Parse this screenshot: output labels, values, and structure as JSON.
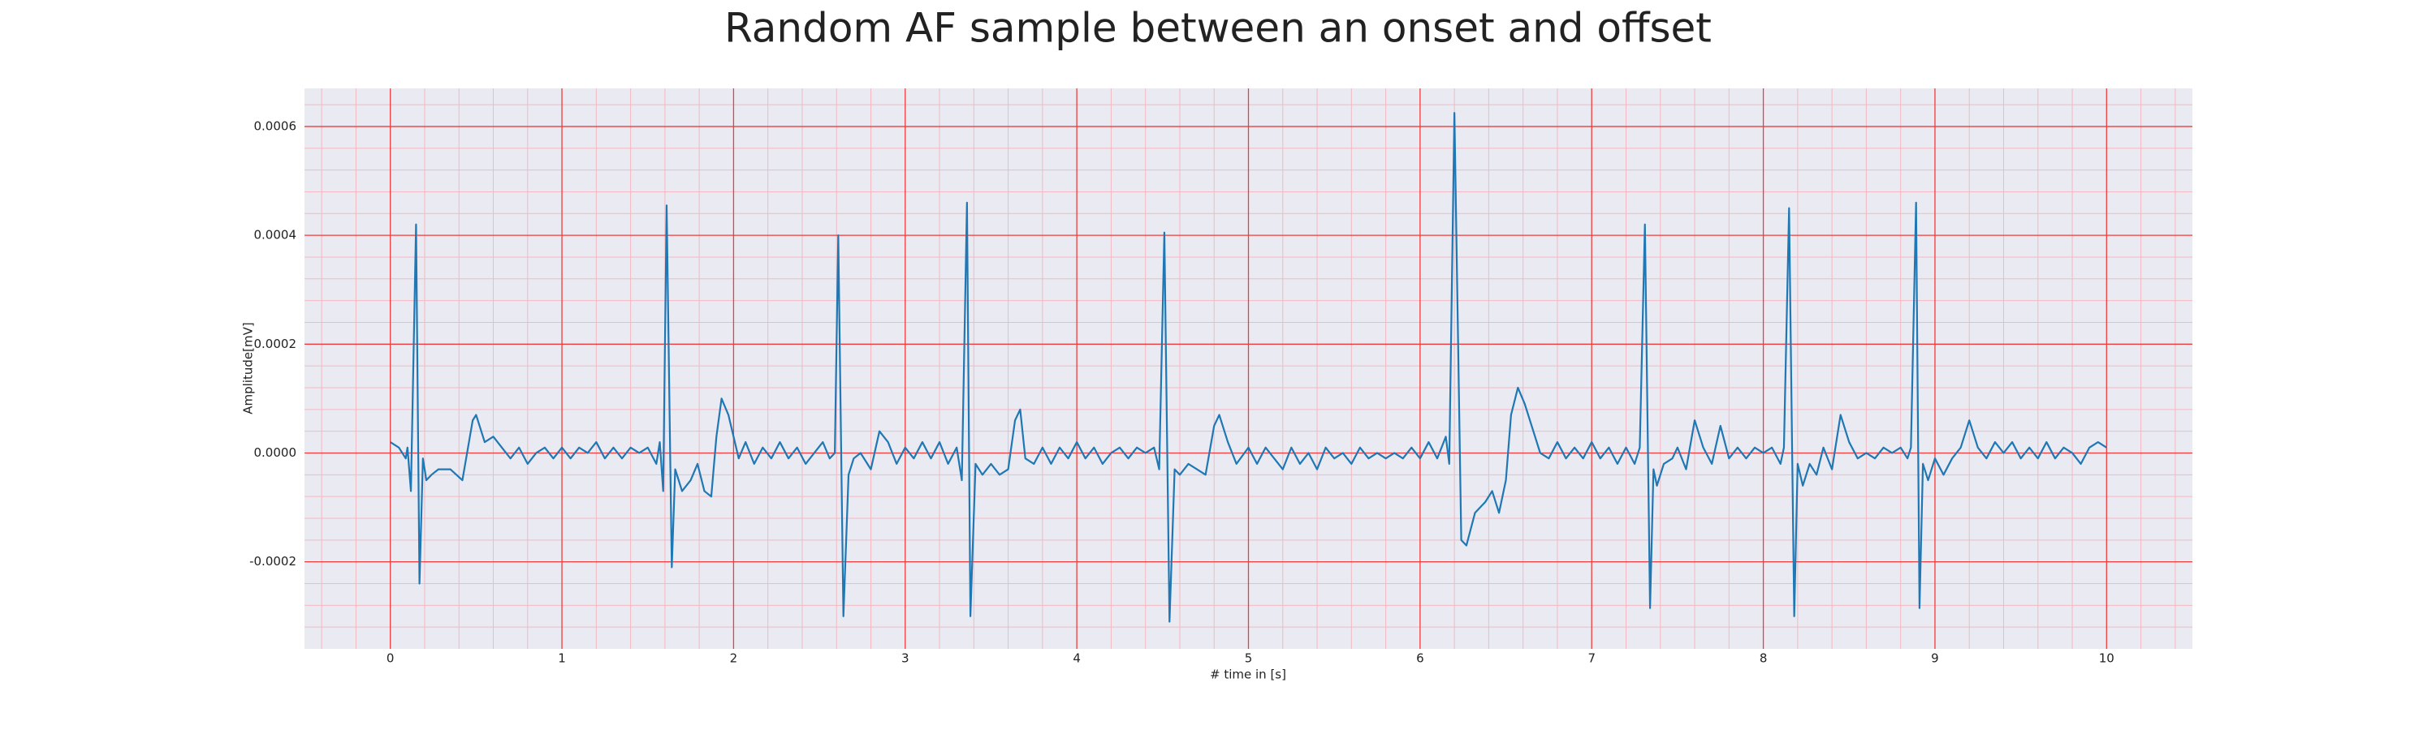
{
  "chart_data": {
    "type": "line",
    "title": "Random AF sample between an onset and offset",
    "xlabel": "# time in [s]",
    "ylabel": "Amplitude[mV]",
    "color": "#1f77b4",
    "grid": true,
    "grid_color": "#f03c3c",
    "minor_grid_color": "#f5b8c0",
    "background": "#eaeaf2",
    "xlim": [
      -0.5,
      10.5
    ],
    "ylim": [
      -0.00036,
      0.00067
    ],
    "xticks": [
      0,
      1,
      2,
      3,
      4,
      5,
      6,
      7,
      8,
      9,
      10
    ],
    "yticks": [
      -0.0002,
      {
        "value": 0,
        "label": "0.0000"
      },
      0.0002,
      0.0004,
      0.0006
    ],
    "minor_xticks": [
      -0.4,
      -0.2,
      0.2,
      0.4,
      0.6,
      0.8,
      1.2,
      1.4,
      1.6,
      1.8,
      2.2,
      2.4,
      2.6,
      2.8,
      3.2,
      3.4,
      3.6,
      3.8,
      4.2,
      4.4,
      4.6,
      4.8,
      5.2,
      5.4,
      5.6,
      5.8,
      6.2,
      6.4,
      6.6,
      6.8,
      7.2,
      7.4,
      7.6,
      7.8,
      8.2,
      8.4,
      8.6,
      8.8,
      9.2,
      9.4,
      9.6,
      9.8,
      10.2,
      10.4
    ],
    "minor_yticks": [
      -0.00032,
      -0.00028,
      -0.00024,
      -0.00016,
      -0.00012,
      -8e-05,
      -4e-05,
      4e-05,
      8e-05,
      0.00012,
      0.00016,
      0.00024,
      0.00028,
      0.00032,
      0.00036,
      0.00044,
      0.00048,
      0.00052,
      0.00056,
      0.00064
    ],
    "x": [
      0,
      0.05,
      0.09,
      0.1,
      0.12,
      0.15,
      0.17,
      0.19,
      0.21,
      0.24,
      0.28,
      0.35,
      0.42,
      0.48,
      0.5,
      0.55,
      0.6,
      0.65,
      0.7,
      0.75,
      0.8,
      0.85,
      0.9,
      0.95,
      1,
      1.05,
      1.1,
      1.15,
      1.2,
      1.25,
      1.3,
      1.35,
      1.4,
      1.45,
      1.5,
      1.55,
      1.57,
      1.59,
      1.61,
      1.64,
      1.66,
      1.7,
      1.75,
      1.79,
      1.83,
      1.87,
      1.9,
      1.93,
      1.97,
      2,
      2.03,
      2.07,
      2.12,
      2.17,
      2.22,
      2.27,
      2.32,
      2.37,
      2.42,
      2.47,
      2.52,
      2.56,
      2.59,
      2.61,
      2.64,
      2.67,
      2.7,
      2.74,
      2.8,
      2.85,
      2.9,
      2.95,
      3,
      3.05,
      3.1,
      3.15,
      3.2,
      3.25,
      3.3,
      3.33,
      3.36,
      3.38,
      3.41,
      3.45,
      3.5,
      3.55,
      3.6,
      3.64,
      3.67,
      3.7,
      3.75,
      3.8,
      3.85,
      3.9,
      3.95,
      4,
      4.05,
      4.1,
      4.15,
      4.2,
      4.25,
      4.3,
      4.35,
      4.4,
      4.45,
      4.48,
      4.51,
      4.54,
      4.57,
      4.6,
      4.65,
      4.7,
      4.75,
      4.8,
      4.83,
      4.88,
      4.93,
      5,
      5.05,
      5.1,
      5.15,
      5.2,
      5.25,
      5.3,
      5.35,
      5.4,
      5.45,
      5.5,
      5.55,
      5.6,
      5.65,
      5.7,
      5.75,
      5.8,
      5.85,
      5.9,
      5.95,
      6,
      6.05,
      6.1,
      6.15,
      6.17,
      6.2,
      6.24,
      6.27,
      6.32,
      6.38,
      6.42,
      6.46,
      6.5,
      6.53,
      6.57,
      6.61,
      6.65,
      6.7,
      6.75,
      6.8,
      6.85,
      6.9,
      6.95,
      7,
      7.05,
      7.1,
      7.15,
      7.2,
      7.25,
      7.28,
      7.31,
      7.34,
      7.36,
      7.38,
      7.42,
      7.47,
      7.5,
      7.55,
      7.6,
      7.65,
      7.7,
      7.75,
      7.8,
      7.85,
      7.9,
      7.95,
      8,
      8.05,
      8.1,
      8.12,
      8.15,
      8.18,
      8.2,
      8.23,
      8.27,
      8.31,
      8.35,
      8.4,
      8.45,
      8.5,
      8.55,
      8.6,
      8.65,
      8.7,
      8.75,
      8.8,
      8.84,
      8.86,
      8.89,
      8.91,
      8.93,
      8.96,
      9,
      9.05,
      9.1,
      9.15,
      9.2,
      9.25,
      9.3,
      9.35,
      9.4,
      9.45,
      9.5,
      9.55,
      9.6,
      9.65,
      9.7,
      9.75,
      9.8,
      9.85,
      9.9,
      9.95,
      10
    ],
    "values": [
      2e-05,
      1e-05,
      -1e-05,
      1e-05,
      -7e-05,
      0.00042,
      -0.00024,
      -1e-05,
      -5e-05,
      -4e-05,
      -3e-05,
      -3e-05,
      -5e-05,
      6e-05,
      7e-05,
      2e-05,
      3e-05,
      1e-05,
      -1e-05,
      1e-05,
      -2e-05,
      0,
      1e-05,
      -1e-05,
      1e-05,
      -1e-05,
      1e-05,
      0,
      2e-05,
      -1e-05,
      1e-05,
      -1e-05,
      1e-05,
      0,
      1e-05,
      -2e-05,
      2e-05,
      -7e-05,
      0.000455,
      -0.00021,
      -3e-05,
      -7e-05,
      -5e-05,
      -2e-05,
      -7e-05,
      -8e-05,
      3e-05,
      0.0001,
      7e-05,
      3e-05,
      -1e-05,
      2e-05,
      -2e-05,
      1e-05,
      -1e-05,
      2e-05,
      -1e-05,
      1e-05,
      -2e-05,
      0,
      2e-05,
      -1e-05,
      0,
      0.0004,
      -0.0003,
      -4e-05,
      -1e-05,
      0,
      -3e-05,
      4e-05,
      2e-05,
      -2e-05,
      1e-05,
      -1e-05,
      2e-05,
      -1e-05,
      2e-05,
      -2e-05,
      1e-05,
      -5e-05,
      0.00046,
      -0.0003,
      -2e-05,
      -4e-05,
      -2e-05,
      -4e-05,
      -3e-05,
      6e-05,
      8e-05,
      -1e-05,
      -2e-05,
      1e-05,
      -2e-05,
      1e-05,
      -1e-05,
      2e-05,
      -1e-05,
      1e-05,
      -2e-05,
      0,
      1e-05,
      -1e-05,
      1e-05,
      0,
      1e-05,
      -3e-05,
      0.000405,
      -0.00031,
      -3e-05,
      -4e-05,
      -2e-05,
      -3e-05,
      -4e-05,
      5e-05,
      7e-05,
      2e-05,
      -2e-05,
      1e-05,
      -2e-05,
      1e-05,
      -1e-05,
      -3e-05,
      1e-05,
      -2e-05,
      0,
      -3e-05,
      1e-05,
      -1e-05,
      0,
      -2e-05,
      1e-05,
      -1e-05,
      0,
      -1e-05,
      0,
      -1e-05,
      1e-05,
      -1e-05,
      2e-05,
      -1e-05,
      3e-05,
      -2e-05,
      0.000625,
      -0.00016,
      -0.00017,
      -0.00011,
      -9e-05,
      -7e-05,
      -0.00011,
      -5e-05,
      7e-05,
      0.00012,
      9e-05,
      5e-05,
      0,
      -1e-05,
      2e-05,
      -1e-05,
      1e-05,
      -1e-05,
      2e-05,
      -1e-05,
      1e-05,
      -2e-05,
      1e-05,
      -2e-05,
      1e-05,
      0.00042,
      -0.000285,
      -3e-05,
      -6e-05,
      -2e-05,
      -1e-05,
      1e-05,
      -3e-05,
      6e-05,
      1e-05,
      -2e-05,
      5e-05,
      -1e-05,
      1e-05,
      -1e-05,
      1e-05,
      0,
      1e-05,
      -2e-05,
      1e-05,
      0.00045,
      -0.0003,
      -2e-05,
      -6e-05,
      -2e-05,
      -4e-05,
      1e-05,
      -3e-05,
      7e-05,
      2e-05,
      -1e-05,
      0,
      -1e-05,
      1e-05,
      0,
      1e-05,
      -1e-05,
      1e-05,
      0.00046,
      -0.000285,
      -2e-05,
      -5e-05,
      -1e-05,
      -4e-05,
      -1e-05,
      1e-05,
      6e-05,
      1e-05,
      -1e-05,
      2e-05,
      0,
      2e-05,
      -1e-05,
      1e-05,
      -1e-05,
      2e-05,
      -1e-05,
      1e-05,
      0,
      -2e-05,
      1e-05,
      2e-05,
      1e-05
    ]
  }
}
